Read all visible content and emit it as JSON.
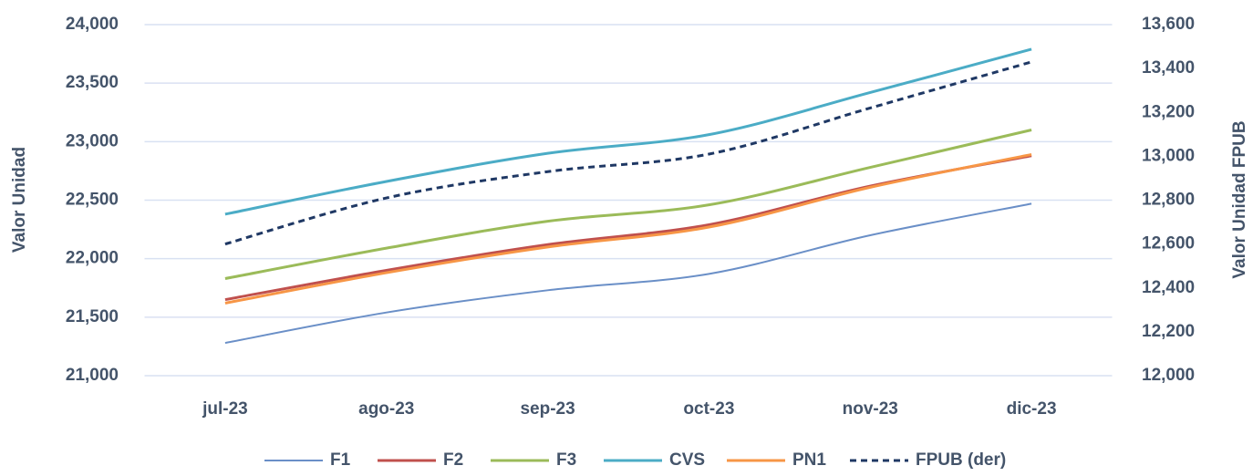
{
  "chart_data": {
    "type": "line",
    "categories": [
      "jul-23",
      "ago-23",
      "sep-23",
      "oct-23",
      "nov-23",
      "dic-23"
    ],
    "ylabel": "Valor Unidad",
    "y2label": "Valor Unidad FPUB",
    "ylim": [
      21000,
      24000
    ],
    "yticks": [
      {
        "value": 21000,
        "label": "21,000"
      },
      {
        "value": 21500,
        "label": "21,500"
      },
      {
        "value": 22000,
        "label": "22,000"
      },
      {
        "value": 22500,
        "label": "22,500"
      },
      {
        "value": 23000,
        "label": "23,000"
      },
      {
        "value": 23500,
        "label": "23,500"
      },
      {
        "value": 24000,
        "label": "24,000"
      }
    ],
    "y2lim": [
      12000,
      13600
    ],
    "y2ticks": [
      {
        "value": 12000,
        "label": "12,000"
      },
      {
        "value": 12200,
        "label": "12,200"
      },
      {
        "value": 12400,
        "label": "12,400"
      },
      {
        "value": 12600,
        "label": "12,600"
      },
      {
        "value": 12800,
        "label": "12,800"
      },
      {
        "value": 13000,
        "label": "13,000"
      },
      {
        "value": 13200,
        "label": "13,200"
      },
      {
        "value": 13400,
        "label": "13,400"
      },
      {
        "value": 13600,
        "label": "13,600"
      }
    ],
    "grid": true,
    "legend": "bottom",
    "series": [
      {
        "name": "F1",
        "color": "#6a8fc7",
        "width": 2,
        "values": [
          21280,
          21540,
          21730,
          21870,
          22200,
          22470
        ]
      },
      {
        "name": "F2",
        "color": "#c0504d",
        "width": 3,
        "values": [
          21650,
          21900,
          22120,
          22290,
          22620,
          22880
        ]
      },
      {
        "name": "F3",
        "color": "#9bbb59",
        "width": 3,
        "values": [
          21830,
          22090,
          22320,
          22460,
          22780,
          23100
        ]
      },
      {
        "name": "CVS",
        "color": "#4bacc6",
        "width": 3,
        "values": [
          22380,
          22660,
          22900,
          23060,
          23420,
          23790
        ]
      },
      {
        "name": "PN1",
        "color": "#f79646",
        "width": 3,
        "values": [
          21620,
          21880,
          22100,
          22270,
          22610,
          22890
        ]
      },
      {
        "name": "FPUB (der)",
        "color": "#1f3864",
        "width": 3,
        "dashed": true,
        "axis": "y2",
        "values": [
          12600,
          12810,
          12930,
          13010,
          13220,
          13430
        ]
      }
    ]
  }
}
